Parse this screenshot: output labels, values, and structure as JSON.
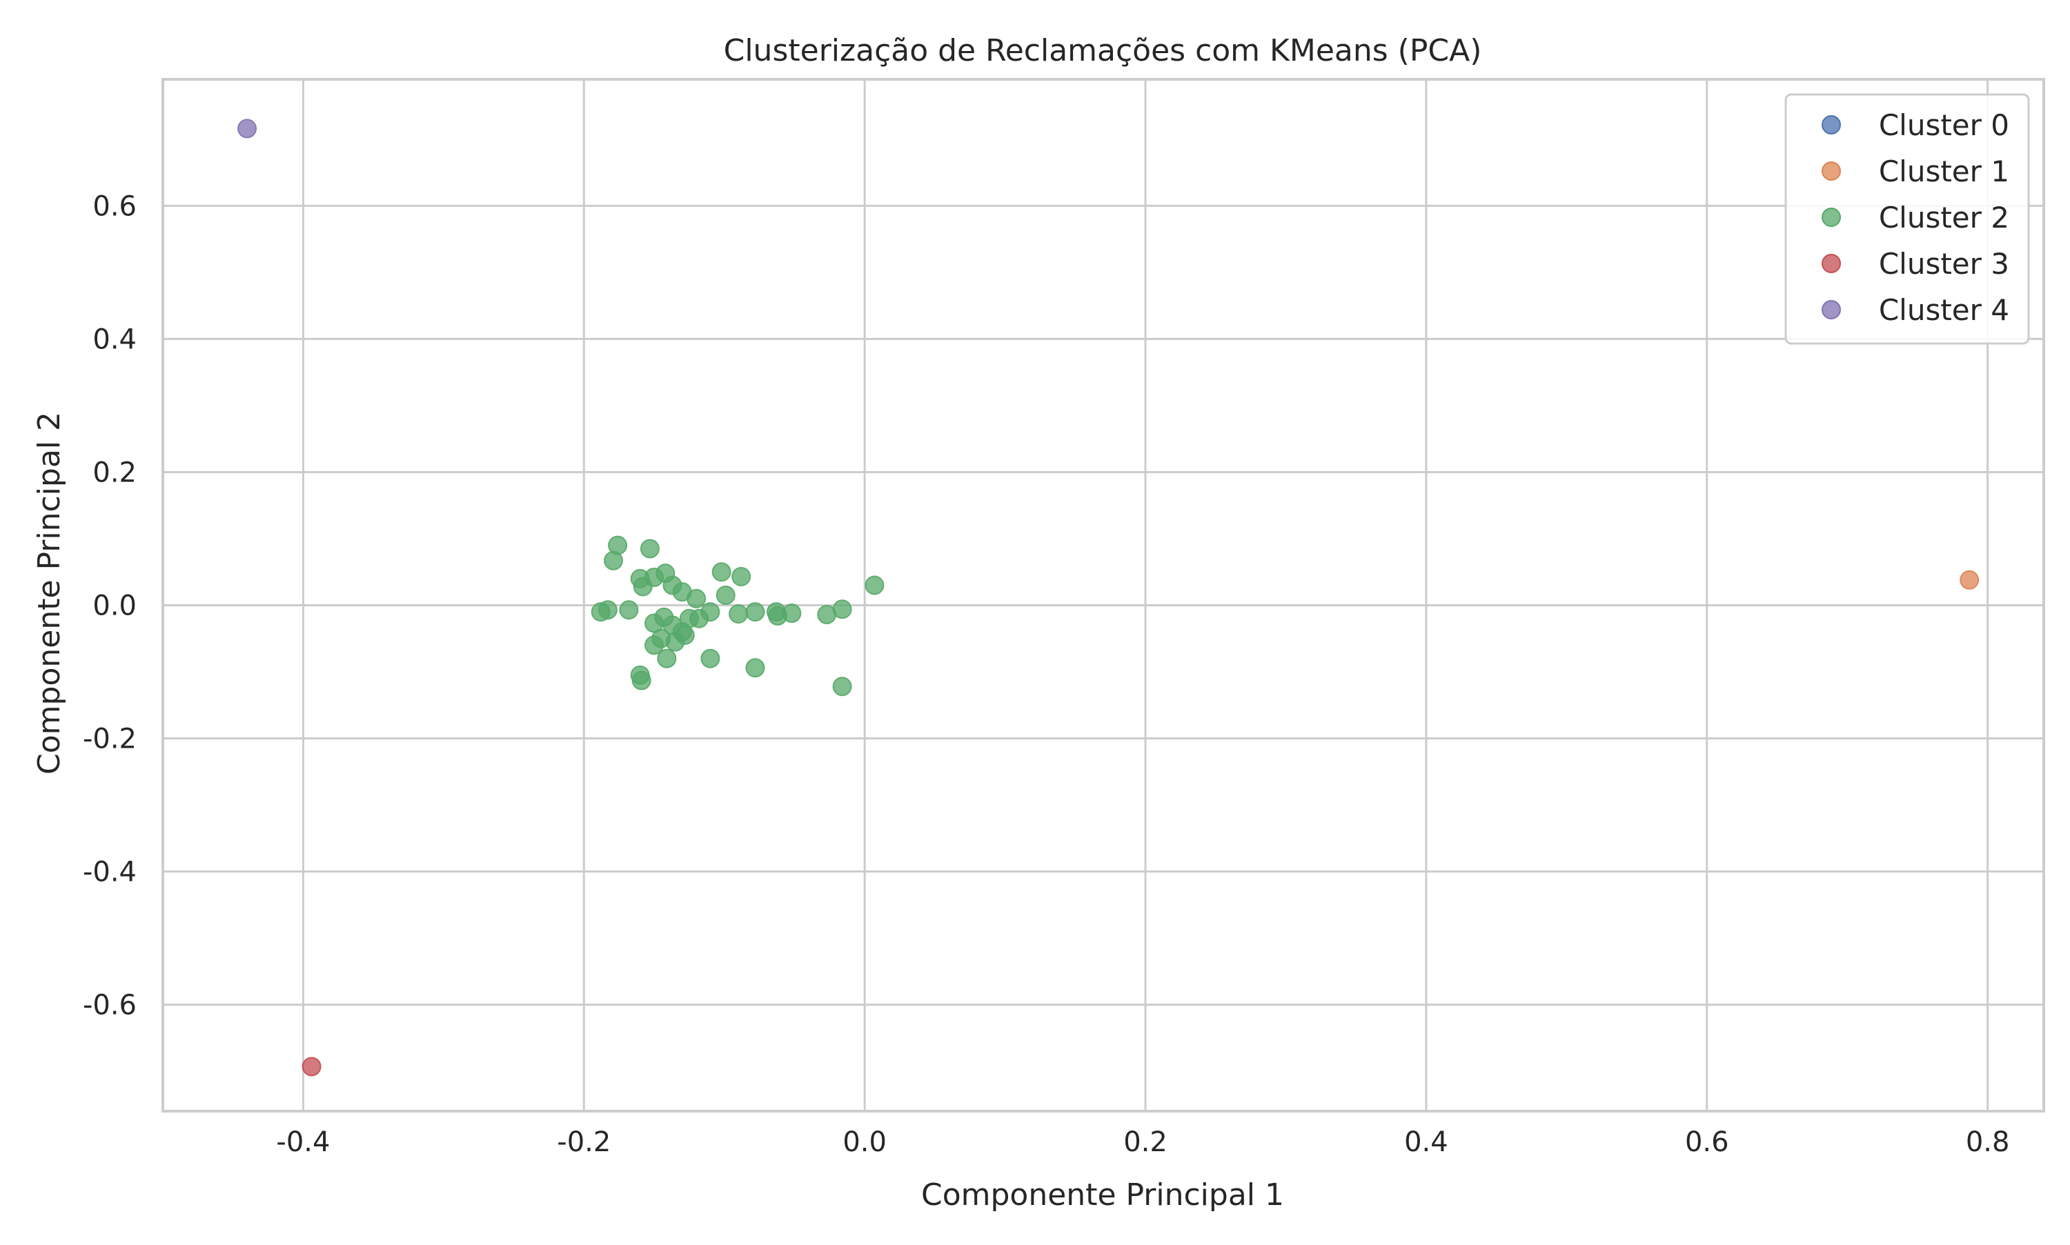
{
  "chart_data": {
    "type": "scatter",
    "title": "Clusterização de Reclamações com KMeans (PCA)",
    "xlabel": "Componente Principal 1",
    "ylabel": "Componente Principal 2",
    "xlim": [
      -0.5,
      0.84
    ],
    "ylim": [
      -0.76,
      0.79
    ],
    "x_ticks": [
      -0.4,
      -0.2,
      0.0,
      0.2,
      0.4,
      0.6,
      0.8
    ],
    "x_tick_labels": [
      "-0.4",
      "-0.2",
      "0.0",
      "0.2",
      "0.4",
      "0.6",
      "0.8"
    ],
    "y_ticks": [
      -0.6,
      -0.4,
      -0.2,
      0.0,
      0.2,
      0.4,
      0.6
    ],
    "y_tick_labels": [
      "-0.6",
      "-0.4",
      "-0.2",
      "0.0",
      "0.2",
      "0.4",
      "0.6"
    ],
    "grid": true,
    "legend_position": "top-right",
    "series": [
      {
        "name": "Cluster 0",
        "color": "#4c72b0",
        "points": []
      },
      {
        "name": "Cluster 1",
        "color": "#dd8452",
        "points": [
          [
            0.787,
            0.038
          ]
        ]
      },
      {
        "name": "Cluster 2",
        "color": "#55a868",
        "points": [
          [
            -0.176,
            0.09
          ],
          [
            -0.153,
            0.085
          ],
          [
            -0.179,
            0.067
          ],
          [
            -0.16,
            0.04
          ],
          [
            -0.158,
            0.028
          ],
          [
            -0.15,
            0.042
          ],
          [
            -0.142,
            0.048
          ],
          [
            -0.137,
            0.03
          ],
          [
            -0.13,
            0.02
          ],
          [
            -0.12,
            0.01
          ],
          [
            -0.102,
            0.05
          ],
          [
            -0.099,
            0.015
          ],
          [
            -0.088,
            0.043
          ],
          [
            0.007,
            0.03
          ],
          [
            -0.188,
            -0.01
          ],
          [
            -0.183,
            -0.007
          ],
          [
            -0.168,
            -0.007
          ],
          [
            -0.15,
            -0.027
          ],
          [
            -0.143,
            -0.018
          ],
          [
            -0.137,
            -0.03
          ],
          [
            -0.13,
            -0.04
          ],
          [
            -0.125,
            -0.02
          ],
          [
            -0.118,
            -0.02
          ],
          [
            -0.11,
            -0.01
          ],
          [
            -0.09,
            -0.013
          ],
          [
            -0.078,
            -0.01
          ],
          [
            -0.063,
            -0.01
          ],
          [
            -0.062,
            -0.016
          ],
          [
            -0.052,
            -0.012
          ],
          [
            -0.027,
            -0.014
          ],
          [
            -0.016,
            -0.006
          ],
          [
            -0.15,
            -0.06
          ],
          [
            -0.145,
            -0.05
          ],
          [
            -0.135,
            -0.055
          ],
          [
            -0.128,
            -0.045
          ],
          [
            -0.141,
            -0.08
          ],
          [
            -0.11,
            -0.08
          ],
          [
            -0.078,
            -0.094
          ],
          [
            -0.16,
            -0.105
          ],
          [
            -0.159,
            -0.113
          ],
          [
            -0.016,
            -0.122
          ]
        ]
      },
      {
        "name": "Cluster 3",
        "color": "#c44e52",
        "points": [
          [
            -0.394,
            -0.693
          ]
        ]
      },
      {
        "name": "Cluster 4",
        "color": "#8172b3",
        "points": [
          [
            -0.44,
            0.716
          ]
        ]
      }
    ]
  }
}
